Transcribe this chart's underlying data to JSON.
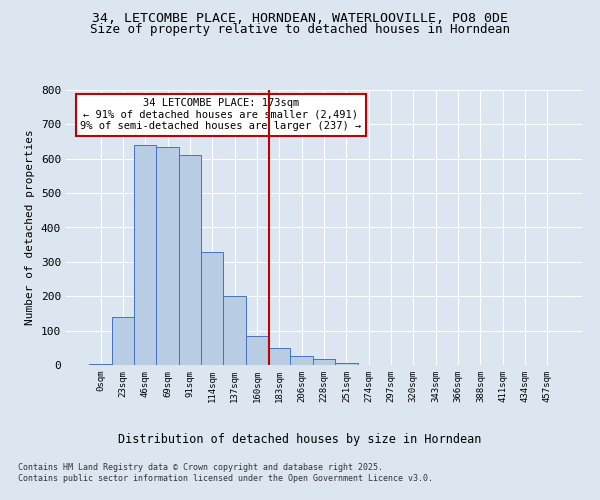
{
  "title1": "34, LETCOMBE PLACE, HORNDEAN, WATERLOOVILLE, PO8 0DE",
  "title2": "Size of property relative to detached houses in Horndean",
  "xlabel": "Distribution of detached houses by size in Horndean",
  "ylabel": "Number of detached properties",
  "bar_labels": [
    "0sqm",
    "23sqm",
    "46sqm",
    "69sqm",
    "91sqm",
    "114sqm",
    "137sqm",
    "160sqm",
    "183sqm",
    "206sqm",
    "228sqm",
    "251sqm",
    "274sqm",
    "297sqm",
    "320sqm",
    "343sqm",
    "366sqm",
    "388sqm",
    "411sqm",
    "434sqm",
    "457sqm"
  ],
  "bar_heights": [
    2,
    140,
    640,
    635,
    610,
    330,
    200,
    85,
    50,
    25,
    18,
    5,
    0,
    0,
    0,
    0,
    0,
    0,
    0,
    0,
    0
  ],
  "bar_color": "#b8cce4",
  "bar_edge_color": "#4472c4",
  "vline_x": 7.52,
  "vline_color": "#c00000",
  "annotation_title": "34 LETCOMBE PLACE: 173sqm",
  "annotation_line1": "← 91% of detached houses are smaller (2,491)",
  "annotation_line2": "9% of semi-detached houses are larger (237) →",
  "annotation_box_color": "#c00000",
  "ylim": [
    0,
    800
  ],
  "yticks": [
    0,
    100,
    200,
    300,
    400,
    500,
    600,
    700,
    800
  ],
  "footnote1": "Contains HM Land Registry data © Crown copyright and database right 2025.",
  "footnote2": "Contains public sector information licensed under the Open Government Licence v3.0.",
  "bg_color": "#dce6f1",
  "plot_bg_color": "#dce6f1",
  "title1_fontsize": 9.5,
  "title2_fontsize": 9,
  "grid_color": "#ffffff"
}
